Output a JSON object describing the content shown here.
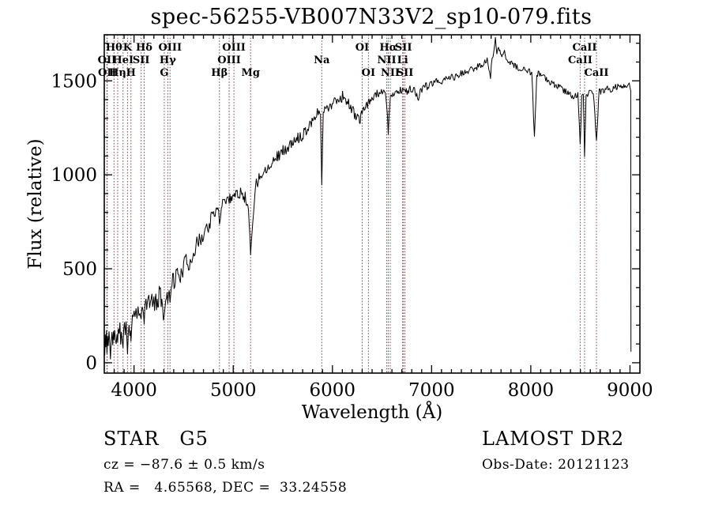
{
  "title": "spec-56255-VB007N33V2_sp10-079.fits",
  "footer": {
    "class_label": "STAR   G5",
    "cz": "cz = −87.6 ± 0.5 km/s",
    "radec": "RA =   4.65568, DEC =  33.24558",
    "survey": "LAMOST DR2",
    "obs_date": "Obs-Date: 20121123"
  },
  "colors": {
    "background": "#ffffff",
    "spectrum_line": "#000000",
    "marker_line": "#7a4040",
    "text": "#000000"
  },
  "chart_data": {
    "type": "line",
    "title": "spec-56255-VB007N33V2_sp10-079.fits",
    "xlabel": "Wavelength (Å)",
    "ylabel": "Flux (relative)",
    "xlim": [
      3700,
      9100
    ],
    "ylim": [
      -55,
      1745
    ],
    "xticks": [
      4000,
      5000,
      6000,
      7000,
      8000,
      9000
    ],
    "yticks": [
      0,
      500,
      1000,
      1500
    ],
    "x_minor_step": 100,
    "y_minor_step": 100,
    "grid": false,
    "legend": "none",
    "line_markers": [
      {
        "label": "Hθ",
        "wl": 3798,
        "row": 1
      },
      {
        "label": "K",
        "wl": 3934,
        "row": 1
      },
      {
        "label": "Hδ",
        "wl": 4102,
        "row": 1
      },
      {
        "label": "OIII",
        "wl": 4363,
        "row": 1
      },
      {
        "label": "OIII",
        "wl": 5007,
        "row": 1
      },
      {
        "label": "OI",
        "wl": 6300,
        "row": 1
      },
      {
        "label": "Hα",
        "wl": 6563,
        "row": 1
      },
      {
        "label": "SII",
        "wl": 6716,
        "row": 1
      },
      {
        "label": "CaII",
        "wl": 8542,
        "row": 1
      },
      {
        "label": "OII",
        "wl": 3727,
        "row": 2
      },
      {
        "label": "HeI",
        "wl": 3889,
        "row": 2
      },
      {
        "label": "SII",
        "wl": 4072,
        "row": 2
      },
      {
        "label": "Hγ",
        "wl": 4340,
        "row": 2
      },
      {
        "label": "OIII",
        "wl": 4959,
        "row": 2
      },
      {
        "label": "Na",
        "wl": 5893,
        "row": 2
      },
      {
        "label": "NII",
        "wl": 6548,
        "row": 2
      },
      {
        "label": "Li",
        "wl": 6708,
        "row": 2
      },
      {
        "label": "CaII",
        "wl": 8498,
        "row": 2
      },
      {
        "label": "OII",
        "wl": 3730,
        "row": 3
      },
      {
        "label": "Hη",
        "wl": 3835,
        "row": 3
      },
      {
        "label": "H",
        "wl": 3969,
        "row": 3
      },
      {
        "label": "G",
        "wl": 4305,
        "row": 3
      },
      {
        "label": "Hβ",
        "wl": 4861,
        "row": 3
      },
      {
        "label": "Mg",
        "wl": 5175,
        "row": 3
      },
      {
        "label": "OI",
        "wl": 6363,
        "row": 3
      },
      {
        "label": "NII",
        "wl": 6583,
        "row": 3
      },
      {
        "label": "SII",
        "wl": 6731,
        "row": 3
      },
      {
        "label": "CaII",
        "wl": 8662,
        "row": 3
      }
    ],
    "noise": {
      "seed": 11,
      "regions": [
        [
          4450,
          65
        ],
        [
          5250,
          45
        ],
        [
          6300,
          32
        ],
        [
          7350,
          22
        ],
        [
          9100,
          18
        ]
      ]
    },
    "series": [
      {
        "name": "spectrum",
        "points": [
          [
            3705,
            40
          ],
          [
            3710,
            150
          ],
          [
            3715,
            80
          ],
          [
            3722,
            160
          ],
          [
            3727,
            60
          ],
          [
            3733,
            140
          ],
          [
            3740,
            90
          ],
          [
            3748,
            170
          ],
          [
            3755,
            100
          ],
          [
            3762,
            30
          ],
          [
            3770,
            120
          ],
          [
            3778,
            160
          ],
          [
            3785,
            90
          ],
          [
            3792,
            170
          ],
          [
            3798,
            110
          ],
          [
            3805,
            180
          ],
          [
            3812,
            130
          ],
          [
            3820,
            90
          ],
          [
            3828,
            160
          ],
          [
            3835,
            100
          ],
          [
            3842,
            180
          ],
          [
            3850,
            140
          ],
          [
            3858,
            200
          ],
          [
            3865,
            130
          ],
          [
            3872,
            180
          ],
          [
            3880,
            120
          ],
          [
            3889,
            90
          ],
          [
            3896,
            170
          ],
          [
            3904,
            210
          ],
          [
            3912,
            150
          ],
          [
            3920,
            200
          ],
          [
            3928,
            130
          ],
          [
            3934,
            60
          ],
          [
            3942,
            160
          ],
          [
            3950,
            210
          ],
          [
            3958,
            150
          ],
          [
            3964,
            180
          ],
          [
            3969,
            110
          ],
          [
            3976,
            200
          ],
          [
            3984,
            260
          ],
          [
            3992,
            230
          ],
          [
            4000,
            280
          ],
          [
            4010,
            240
          ],
          [
            4020,
            300
          ],
          [
            4030,
            260
          ],
          [
            4040,
            310
          ],
          [
            4050,
            270
          ],
          [
            4060,
            250
          ],
          [
            4072,
            230
          ],
          [
            4085,
            290
          ],
          [
            4095,
            260
          ],
          [
            4102,
            220
          ],
          [
            4110,
            300
          ],
          [
            4120,
            330
          ],
          [
            4135,
            290
          ],
          [
            4150,
            340
          ],
          [
            4165,
            310
          ],
          [
            4180,
            350
          ],
          [
            4200,
            320
          ],
          [
            4220,
            360
          ],
          [
            4240,
            330
          ],
          [
            4260,
            370
          ],
          [
            4280,
            330
          ],
          [
            4305,
            260
          ],
          [
            4320,
            340
          ],
          [
            4340,
            320
          ],
          [
            4355,
            380
          ],
          [
            4363,
            340
          ],
          [
            4375,
            420
          ],
          [
            4390,
            450
          ],
          [
            4410,
            430
          ],
          [
            4430,
            470
          ],
          [
            4450,
            490
          ],
          [
            4475,
            460
          ],
          [
            4500,
            510
          ],
          [
            4525,
            540
          ],
          [
            4550,
            520
          ],
          [
            4575,
            560
          ],
          [
            4600,
            590
          ],
          [
            4625,
            620
          ],
          [
            4650,
            640
          ],
          [
            4675,
            660
          ],
          [
            4700,
            690
          ],
          [
            4725,
            710
          ],
          [
            4750,
            730
          ],
          [
            4775,
            760
          ],
          [
            4800,
            780
          ],
          [
            4825,
            800
          ],
          [
            4845,
            830
          ],
          [
            4861,
            760
          ],
          [
            4880,
            840
          ],
          [
            4900,
            860
          ],
          [
            4920,
            870
          ],
          [
            4940,
            880
          ],
          [
            4959,
            860
          ],
          [
            4980,
            890
          ],
          [
            5000,
            900
          ],
          [
            5020,
            890
          ],
          [
            5040,
            910
          ],
          [
            5060,
            900
          ],
          [
            5080,
            920
          ],
          [
            5100,
            900
          ],
          [
            5120,
            880
          ],
          [
            5140,
            850
          ],
          [
            5160,
            760
          ],
          [
            5175,
            580
          ],
          [
            5190,
            700
          ],
          [
            5205,
            820
          ],
          [
            5220,
            920
          ],
          [
            5240,
            960
          ],
          [
            5260,
            990
          ],
          [
            5280,
            1000
          ],
          [
            5300,
            1010
          ],
          [
            5330,
            1030
          ],
          [
            5360,
            1050
          ],
          [
            5390,
            1070
          ],
          [
            5420,
            1090
          ],
          [
            5450,
            1100
          ],
          [
            5480,
            1120
          ],
          [
            5510,
            1130
          ],
          [
            5540,
            1140
          ],
          [
            5570,
            1150
          ],
          [
            5600,
            1170
          ],
          [
            5630,
            1180
          ],
          [
            5660,
            1200
          ],
          [
            5690,
            1210
          ],
          [
            5720,
            1230
          ],
          [
            5750,
            1250
          ],
          [
            5780,
            1280
          ],
          [
            5810,
            1300
          ],
          [
            5840,
            1320
          ],
          [
            5865,
            1330
          ],
          [
            5880,
            1340
          ],
          [
            5893,
            950
          ],
          [
            5908,
            1340
          ],
          [
            5930,
            1350
          ],
          [
            5960,
            1360
          ],
          [
            5990,
            1380
          ],
          [
            6020,
            1390
          ],
          [
            6050,
            1400
          ],
          [
            6080,
            1410
          ],
          [
            6110,
            1420
          ],
          [
            6140,
            1400
          ],
          [
            6170,
            1370
          ],
          [
            6200,
            1340
          ],
          [
            6230,
            1320
          ],
          [
            6260,
            1310
          ],
          [
            6280,
            1290
          ],
          [
            6300,
            1330
          ],
          [
            6330,
            1360
          ],
          [
            6360,
            1380
          ],
          [
            6390,
            1400
          ],
          [
            6420,
            1420
          ],
          [
            6450,
            1430
          ],
          [
            6480,
            1430
          ],
          [
            6510,
            1440
          ],
          [
            6540,
            1420
          ],
          [
            6563,
            1230
          ],
          [
            6585,
            1420
          ],
          [
            6610,
            1430
          ],
          [
            6640,
            1440
          ],
          [
            6670,
            1450
          ],
          [
            6700,
            1450
          ],
          [
            6731,
            1440
          ],
          [
            6760,
            1450
          ],
          [
            6790,
            1460
          ],
          [
            6820,
            1450
          ],
          [
            6850,
            1420
          ],
          [
            6867,
            1390
          ],
          [
            6885,
            1440
          ],
          [
            6910,
            1460
          ],
          [
            6940,
            1470
          ],
          [
            6970,
            1470
          ],
          [
            7000,
            1480
          ],
          [
            7040,
            1490
          ],
          [
            7080,
            1500
          ],
          [
            7120,
            1500
          ],
          [
            7160,
            1510
          ],
          [
            7200,
            1520
          ],
          [
            7240,
            1520
          ],
          [
            7280,
            1530
          ],
          [
            7320,
            1540
          ],
          [
            7360,
            1550
          ],
          [
            7400,
            1560
          ],
          [
            7440,
            1570
          ],
          [
            7480,
            1580
          ],
          [
            7520,
            1590
          ],
          [
            7560,
            1610
          ],
          [
            7594,
            1520
          ],
          [
            7610,
            1630
          ],
          [
            7628,
            1650
          ],
          [
            7643,
            1730
          ],
          [
            7658,
            1650
          ],
          [
            7675,
            1670
          ],
          [
            7695,
            1650
          ],
          [
            7715,
            1630
          ],
          [
            7735,
            1650
          ],
          [
            7755,
            1620
          ],
          [
            7775,
            1610
          ],
          [
            7800,
            1600
          ],
          [
            7830,
            1580
          ],
          [
            7860,
            1570
          ],
          [
            7890,
            1560
          ],
          [
            7920,
            1560
          ],
          [
            7950,
            1550
          ],
          [
            7980,
            1550
          ],
          [
            8010,
            1540
          ],
          [
            8037,
            1190
          ],
          [
            8060,
            1540
          ],
          [
            8090,
            1530
          ],
          [
            8120,
            1520
          ],
          [
            8150,
            1510
          ],
          [
            8180,
            1500
          ],
          [
            8210,
            1490
          ],
          [
            8240,
            1480
          ],
          [
            8270,
            1470
          ],
          [
            8300,
            1460
          ],
          [
            8330,
            1450
          ],
          [
            8360,
            1440
          ],
          [
            8390,
            1430
          ],
          [
            8420,
            1420
          ],
          [
            8450,
            1420
          ],
          [
            8475,
            1430
          ],
          [
            8498,
            1150
          ],
          [
            8515,
            1420
          ],
          [
            8530,
            1430
          ],
          [
            8542,
            1100
          ],
          [
            8558,
            1420
          ],
          [
            8580,
            1430
          ],
          [
            8605,
            1440
          ],
          [
            8630,
            1450
          ],
          [
            8662,
            1180
          ],
          [
            8690,
            1450
          ],
          [
            8720,
            1440
          ],
          [
            8750,
            1450
          ],
          [
            8780,
            1460
          ],
          [
            8810,
            1450
          ],
          [
            8840,
            1460
          ],
          [
            8870,
            1470
          ],
          [
            8900,
            1460
          ],
          [
            8930,
            1470
          ],
          [
            8960,
            1480
          ],
          [
            8985,
            1490
          ],
          [
            9000,
            1470
          ],
          [
            9008,
            1450
          ],
          [
            9010,
            60
          ]
        ]
      }
    ]
  }
}
